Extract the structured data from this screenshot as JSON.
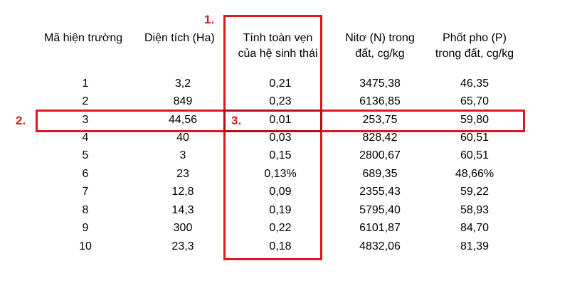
{
  "headers": {
    "col1": [
      "Mã hiện trường"
    ],
    "col2": [
      "Diện tích (Ha)"
    ],
    "col3": [
      "Tính toàn vẹn",
      "của hệ sinh thái"
    ],
    "col4": [
      "Nitơ (N) trong",
      "đất, cg/kg"
    ],
    "col5": [
      "Phốt pho (P)",
      "trong đất, cg/kg"
    ]
  },
  "rows": [
    [
      "1",
      "3,2",
      "0,21",
      "3475,38",
      "46,35"
    ],
    [
      "2",
      "849",
      "0,23",
      "6136,85",
      "65,70"
    ],
    [
      "3",
      "44,56",
      "0,01",
      "253,75",
      "59,80"
    ],
    [
      "4",
      "40",
      "0,03",
      "828,42",
      "60,51"
    ],
    [
      "5",
      "3",
      "0,15",
      "2800,67",
      "60,51"
    ],
    [
      "6",
      "23",
      "0,13%",
      "689,35",
      "48,66%"
    ],
    [
      "7",
      "12,8",
      "0,09",
      "2355,43",
      "59,22"
    ],
    [
      "8",
      "14,3",
      "0,19",
      "5795,40",
      "58,93"
    ],
    [
      "9",
      "300",
      "0,22",
      "6101,87",
      "84,70"
    ],
    [
      "10",
      "23,3",
      "0,18",
      "4832,06",
      "81,39"
    ]
  ],
  "annotations": {
    "mark1": "1.",
    "mark2": "2.",
    "mark3": "3."
  },
  "colors": {
    "annotation": "#e0161d"
  }
}
